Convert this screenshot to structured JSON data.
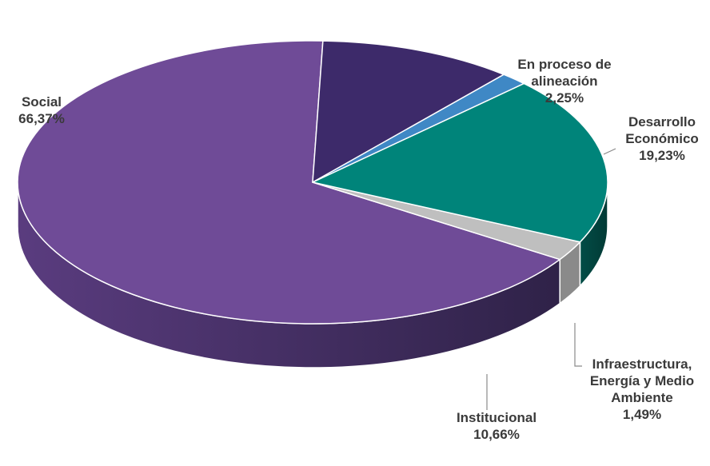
{
  "chart_data": {
    "type": "pie",
    "three_d": true,
    "slices": [
      {
        "label": "Social",
        "value": 66.37,
        "value_label": "66,37%",
        "color": "#6F4B97"
      },
      {
        "label": "En proceso de alineación",
        "value": 2.25,
        "value_label": "2,25%",
        "color": "#BFBFBF"
      },
      {
        "label": "Desarrollo Económico",
        "value": 19.23,
        "value_label": "19,23%",
        "color": "#00847A"
      },
      {
        "label": "Infraestructura, Energía y Medio Ambiente",
        "value": 1.49,
        "value_label": "1,49%",
        "color": "#3F88C5"
      },
      {
        "label": "Institucional",
        "value": 10.66,
        "value_label": "10,66%",
        "color": "#3D2A6A"
      }
    ]
  },
  "labels": {
    "social": {
      "lines": [
        "Social",
        "66,37%"
      ]
    },
    "proceso": {
      "lines": [
        "En proceso de",
        "alineación",
        "2,25%"
      ]
    },
    "desarrollo": {
      "lines": [
        "Desarrollo",
        "Económico",
        "19,23%"
      ]
    },
    "infra": {
      "lines": [
        "Infraestructura,",
        "Energía y Medio",
        "Ambiente",
        "1,49%"
      ]
    },
    "institucional": {
      "lines": [
        "Institucional",
        "10,66%"
      ]
    }
  }
}
